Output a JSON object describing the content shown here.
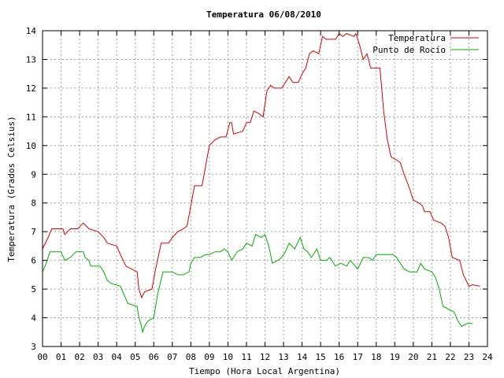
{
  "chart_data": {
    "type": "line",
    "title": "Temperatura 06/08/2010",
    "xlabel": "Tiempo (Hora Local Argentina)",
    "ylabel": "Temperatura (Grados Celsius)",
    "xlim": [
      0,
      24
    ],
    "ylim": [
      3,
      14
    ],
    "x_ticks": [
      "00",
      "01",
      "02",
      "03",
      "04",
      "05",
      "06",
      "07",
      "08",
      "09",
      "10",
      "11",
      "12",
      "13",
      "14",
      "15",
      "16",
      "17",
      "18",
      "19",
      "20",
      "21",
      "22",
      "23",
      "24"
    ],
    "y_ticks": [
      3,
      4,
      5,
      6,
      7,
      8,
      9,
      10,
      11,
      12,
      13,
      14
    ],
    "grid": true,
    "legend_position": "top-right",
    "colors": {
      "temperatura": "#e00000",
      "rocio": "#00b000"
    },
    "series": [
      {
        "name": "Temperatura",
        "color": "#e00000",
        "points": [
          [
            0,
            6.4
          ],
          [
            0.3,
            6.8
          ],
          [
            0.5,
            7.1
          ],
          [
            1.1,
            7.1
          ],
          [
            1.2,
            6.9
          ],
          [
            1.5,
            7.1
          ],
          [
            1.9,
            7.1
          ],
          [
            2.2,
            7.3
          ],
          [
            2.5,
            7.1
          ],
          [
            3,
            7.0
          ],
          [
            3.3,
            6.8
          ],
          [
            3.5,
            6.6
          ],
          [
            4,
            6.5
          ],
          [
            4.2,
            6.2
          ],
          [
            4.5,
            5.8
          ],
          [
            4.8,
            5.7
          ],
          [
            5.1,
            5.6
          ],
          [
            5.2,
            5.0
          ],
          [
            5.35,
            4.7
          ],
          [
            5.5,
            4.9
          ],
          [
            5.9,
            5.0
          ],
          [
            6.1,
            5.7
          ],
          [
            6.4,
            6.6
          ],
          [
            6.8,
            6.6
          ],
          [
            7,
            6.8
          ],
          [
            7.3,
            7.0
          ],
          [
            7.6,
            7.1
          ],
          [
            7.8,
            7.2
          ],
          [
            8,
            7.9
          ],
          [
            8.2,
            8.6
          ],
          [
            8.6,
            8.6
          ],
          [
            8.8,
            9.3
          ],
          [
            9,
            10.0
          ],
          [
            9.3,
            10.2
          ],
          [
            9.6,
            10.3
          ],
          [
            9.9,
            10.3
          ],
          [
            10.1,
            10.8
          ],
          [
            10.2,
            10.8
          ],
          [
            10.3,
            10.4
          ],
          [
            10.8,
            10.5
          ],
          [
            11,
            10.8
          ],
          [
            11.2,
            10.8
          ],
          [
            11.4,
            11.2
          ],
          [
            11.7,
            11.1
          ],
          [
            11.9,
            11.0
          ],
          [
            12.1,
            11.9
          ],
          [
            12.3,
            12.1
          ],
          [
            12.5,
            12.0
          ],
          [
            12.9,
            12.0
          ],
          [
            13.1,
            12.2
          ],
          [
            13.3,
            12.4
          ],
          [
            13.5,
            12.2
          ],
          [
            13.8,
            12.2
          ],
          [
            14,
            12.5
          ],
          [
            14.2,
            12.7
          ],
          [
            14.4,
            13.2
          ],
          [
            14.6,
            13.3
          ],
          [
            14.9,
            13.2
          ],
          [
            15.1,
            13.8
          ],
          [
            15.3,
            13.7
          ],
          [
            15.8,
            13.7
          ],
          [
            16,
            13.9
          ],
          [
            16.2,
            13.8
          ],
          [
            16.4,
            13.9
          ],
          [
            16.8,
            13.8
          ],
          [
            16.9,
            13.9
          ],
          [
            17.1,
            13.5
          ],
          [
            17.3,
            13.0
          ],
          [
            17.5,
            13.2
          ],
          [
            17.7,
            12.7
          ],
          [
            18.2,
            12.7
          ],
          [
            18.4,
            11.2
          ],
          [
            18.6,
            10.2
          ],
          [
            18.8,
            9.6
          ],
          [
            19.1,
            9.5
          ],
          [
            19.3,
            9.4
          ],
          [
            19.5,
            9.0
          ],
          [
            19.8,
            8.5
          ],
          [
            20,
            8.1
          ],
          [
            20.3,
            8.0
          ],
          [
            20.5,
            7.9
          ],
          [
            20.6,
            7.7
          ],
          [
            20.9,
            7.7
          ],
          [
            21.1,
            7.4
          ],
          [
            21.5,
            7.3
          ],
          [
            21.7,
            7.2
          ],
          [
            21.9,
            6.8
          ],
          [
            22.1,
            6.1
          ],
          [
            22.5,
            6.0
          ],
          [
            22.7,
            5.5
          ],
          [
            23,
            5.1
          ],
          [
            23.2,
            5.15
          ],
          [
            23.6,
            5.1
          ]
        ]
      },
      {
        "name": "Punto de Rocío",
        "color": "#00b000",
        "points": [
          [
            0,
            5.6
          ],
          [
            0.2,
            5.9
          ],
          [
            0.4,
            6.3
          ],
          [
            1,
            6.3
          ],
          [
            1.2,
            6.0
          ],
          [
            1.5,
            6.1
          ],
          [
            1.8,
            6.3
          ],
          [
            2,
            6.3
          ],
          [
            2.2,
            6.3
          ],
          [
            2.3,
            6.1
          ],
          [
            2.5,
            6.0
          ],
          [
            2.6,
            5.8
          ],
          [
            3.1,
            5.8
          ],
          [
            3.3,
            5.6
          ],
          [
            3.5,
            5.3
          ],
          [
            3.7,
            5.2
          ],
          [
            4.2,
            5.1
          ],
          [
            4.4,
            4.8
          ],
          [
            4.6,
            4.5
          ],
          [
            5.1,
            4.4
          ],
          [
            5.2,
            4.0
          ],
          [
            5.3,
            3.8
          ],
          [
            5.4,
            3.5
          ],
          [
            5.5,
            3.7
          ],
          [
            5.7,
            3.9
          ],
          [
            6,
            4.0
          ],
          [
            6.2,
            4.8
          ],
          [
            6.5,
            5.6
          ],
          [
            7,
            5.6
          ],
          [
            7.3,
            5.5
          ],
          [
            7.6,
            5.5
          ],
          [
            7.9,
            5.6
          ],
          [
            8,
            5.9
          ],
          [
            8.2,
            6.1
          ],
          [
            8.5,
            6.1
          ],
          [
            8.8,
            6.2
          ],
          [
            9,
            6.2
          ],
          [
            9.3,
            6.3
          ],
          [
            9.6,
            6.3
          ],
          [
            9.8,
            6.4
          ],
          [
            10,
            6.3
          ],
          [
            10.2,
            6.0
          ],
          [
            10.5,
            6.3
          ],
          [
            10.8,
            6.4
          ],
          [
            11,
            6.6
          ],
          [
            11.3,
            6.5
          ],
          [
            11.5,
            6.9
          ],
          [
            11.8,
            6.8
          ],
          [
            12,
            6.9
          ],
          [
            12.2,
            6.5
          ],
          [
            12.4,
            5.9
          ],
          [
            12.7,
            6.0
          ],
          [
            12.9,
            6.1
          ],
          [
            13.1,
            6.3
          ],
          [
            13.3,
            6.6
          ],
          [
            13.6,
            6.4
          ],
          [
            13.9,
            6.8
          ],
          [
            14.1,
            6.4
          ],
          [
            14.3,
            6.3
          ],
          [
            14.5,
            6.1
          ],
          [
            14.8,
            6.4
          ],
          [
            15,
            6.0
          ],
          [
            15.3,
            6.0
          ],
          [
            15.5,
            6.1
          ],
          [
            15.8,
            5.8
          ],
          [
            16.1,
            5.9
          ],
          [
            16.4,
            5.8
          ],
          [
            16.6,
            6.0
          ],
          [
            17,
            5.7
          ],
          [
            17.3,
            6.1
          ],
          [
            17.6,
            6.1
          ],
          [
            17.8,
            6.0
          ],
          [
            18,
            6.2
          ],
          [
            18.3,
            6.2
          ],
          [
            18.6,
            6.2
          ],
          [
            18.9,
            6.2
          ],
          [
            19.1,
            6.1
          ],
          [
            19.3,
            5.9
          ],
          [
            19.5,
            5.7
          ],
          [
            19.8,
            5.6
          ],
          [
            20.2,
            5.6
          ],
          [
            20.4,
            5.9
          ],
          [
            20.6,
            5.7
          ],
          [
            21,
            5.6
          ],
          [
            21.2,
            5.4
          ],
          [
            21.4,
            5.0
          ],
          [
            21.6,
            4.4
          ],
          [
            21.9,
            4.3
          ],
          [
            22.2,
            4.2
          ],
          [
            22.4,
            3.9
          ],
          [
            22.6,
            3.7
          ],
          [
            22.9,
            3.8
          ],
          [
            23.2,
            3.8
          ]
        ]
      }
    ]
  }
}
